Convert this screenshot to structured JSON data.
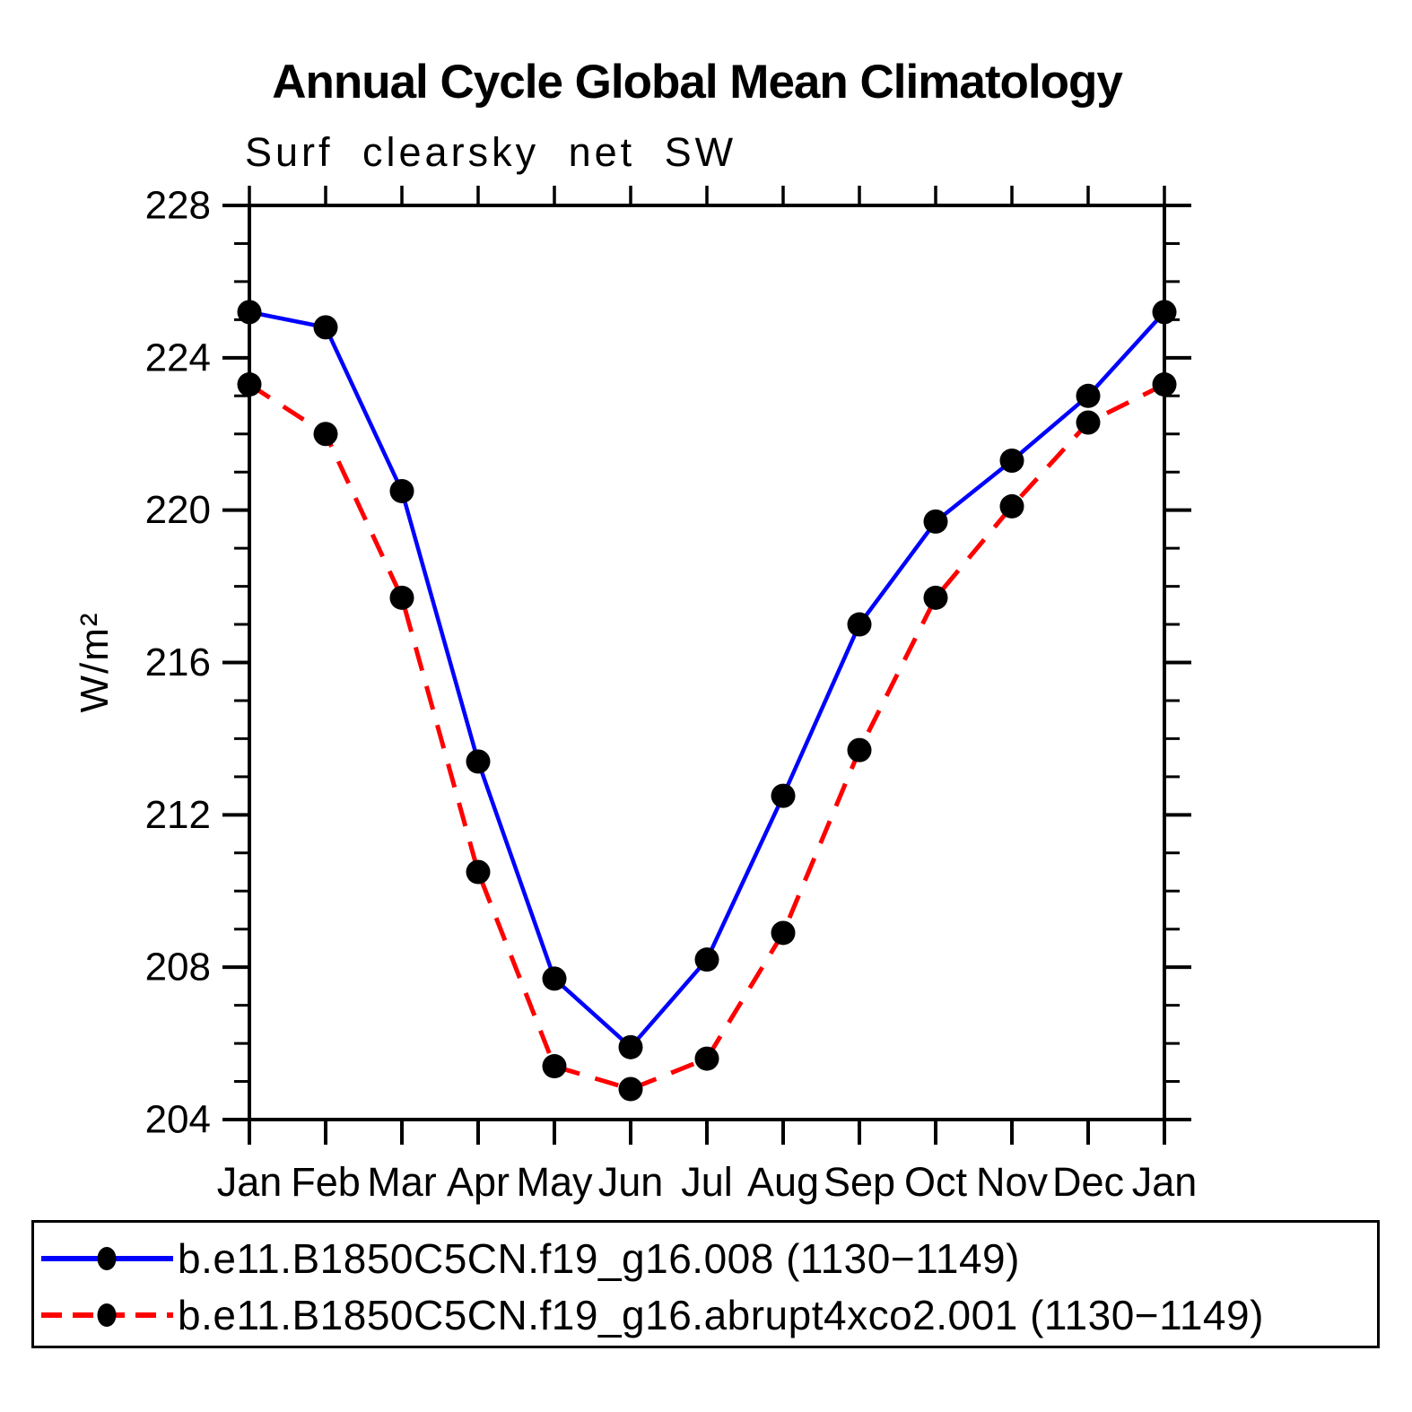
{
  "title": "Annual Cycle Global Mean Climatology",
  "subtitle": "Surf clearsky net SW",
  "ylabel": "W/m²",
  "chart_data": {
    "type": "line",
    "categories": [
      "Jan",
      "Feb",
      "Mar",
      "Apr",
      "May",
      "Jun",
      "Jul",
      "Aug",
      "Sep",
      "Oct",
      "Nov",
      "Dec",
      "Jan"
    ],
    "series": [
      {
        "name": "b.e11.B1850C5CN.f19_g16.008 (1130−1149)",
        "color": "#0000ff",
        "line_style": "solid",
        "marker": "circle",
        "marker_color": "#000000",
        "values": [
          225.2,
          224.8,
          220.5,
          213.4,
          207.7,
          205.9,
          208.2,
          212.5,
          217.0,
          219.7,
          221.3,
          223.0,
          225.2
        ]
      },
      {
        "name": "b.e11.B1850C5CN.f19_g16.abrupt4xco2.001 (1130−1149)",
        "color": "#ff0000",
        "line_style": "dashed",
        "marker": "circle",
        "marker_color": "#000000",
        "values": [
          223.3,
          222.0,
          217.7,
          210.5,
          205.4,
          204.8,
          205.6,
          208.9,
          213.7,
          217.7,
          220.1,
          222.3,
          223.3
        ]
      }
    ],
    "xlabel": "",
    "ylim": [
      204,
      228
    ],
    "y_major_ticks": [
      204,
      208,
      212,
      216,
      220,
      224,
      228
    ],
    "y_minor_step": 1,
    "grid": false,
    "legend_position": "bottom",
    "axis_color": "#000000"
  }
}
